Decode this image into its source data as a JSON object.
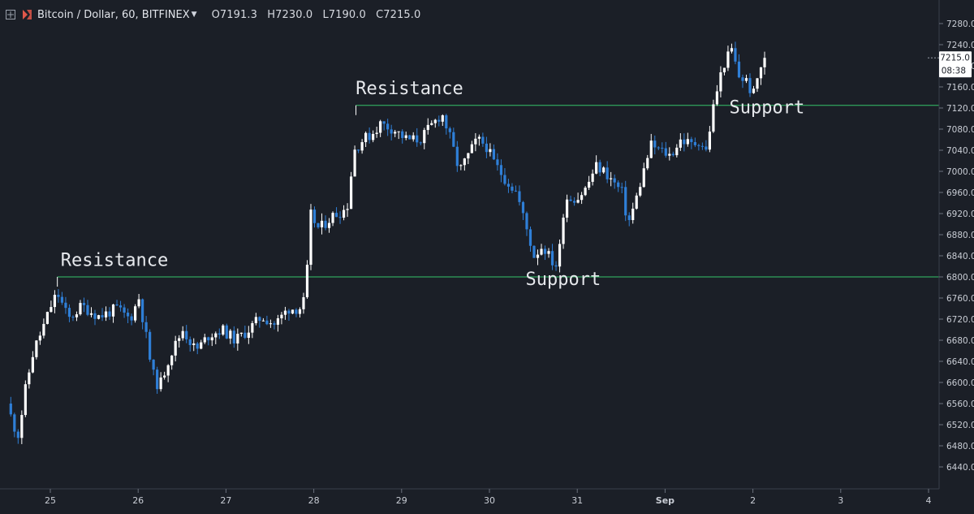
{
  "header": {
    "symbol": "Bitcoin / Dollar, 60, BITFINEX",
    "open": "O7191.3",
    "high": "H7230.0",
    "low": "L7190.0",
    "close": "C7215.0"
  },
  "price_label": {
    "price": "7215.0",
    "countdown": "08:38"
  },
  "colors": {
    "background": "#1b1f27",
    "up": "#ffffff",
    "down": "#2f7fd7",
    "level_line": "#34c46a",
    "axis_text": "#c9cdd5",
    "annotation_text": "#e6e8ec"
  },
  "chart_data": {
    "type": "candlestick",
    "title": "Bitcoin / Dollar, 60, BITFINEX",
    "interval": "60",
    "x_ticks": [
      "25",
      "26",
      "27",
      "28",
      "29",
      "30",
      "31",
      "Sep",
      "2",
      "3",
      "4"
    ],
    "y_ticks": [
      6440.0,
      6480.0,
      6520.0,
      6560.0,
      6600.0,
      6640.0,
      6680.0,
      6720.0,
      6760.0,
      6800.0,
      6840.0,
      6880.0,
      6920.0,
      6960.0,
      7000.0,
      7040.0,
      7080.0,
      7120.0,
      7160.0,
      7200.0,
      7240.0,
      7280.0
    ],
    "y_tick_labels": [
      "6440.0",
      "6480.0",
      "6520.0",
      "6560.0",
      "6600.0",
      "6640.0",
      "6680.0",
      "6720.0",
      "6760.0",
      "6800.0",
      "6840.0",
      "6880.0",
      "6920.0",
      "6960.0",
      "7000.0",
      "7040.0",
      "7080.0",
      "7120.0",
      "7160.0",
      "7200.0",
      "7240.0",
      "7280.0"
    ],
    "ylim": [
      6410,
      7300
    ],
    "xlim": [
      24.55,
      35.2
    ],
    "grid": false,
    "levels": [
      {
        "price": 6800,
        "from": 25.08
      },
      {
        "price": 7125,
        "from": 28.48
      }
    ],
    "annotations": [
      {
        "text": "Resistance",
        "x": 25.73,
        "price": 6821
      },
      {
        "text": "Resistance",
        "x": 29.09,
        "price": 7146
      },
      {
        "text": "Support",
        "x": 30.84,
        "price": 6785
      },
      {
        "text": "Support",
        "x": 33.16,
        "price": 7110
      }
    ],
    "current_price": 7215.0,
    "anchors": [
      [
        24.55,
        6560
      ],
      [
        24.62,
        6520
      ],
      [
        24.68,
        6500
      ],
      [
        24.75,
        6580
      ],
      [
        24.85,
        6660
      ],
      [
        24.95,
        6700
      ],
      [
        25.05,
        6745
      ],
      [
        25.12,
        6770
      ],
      [
        25.25,
        6720
      ],
      [
        25.4,
        6745
      ],
      [
        25.6,
        6725
      ],
      [
        25.8,
        6740
      ],
      [
        25.95,
        6720
      ],
      [
        26.05,
        6760
      ],
      [
        26.12,
        6700
      ],
      [
        26.2,
        6620
      ],
      [
        26.28,
        6590
      ],
      [
        26.4,
        6650
      ],
      [
        26.55,
        6700
      ],
      [
        26.7,
        6660
      ],
      [
        26.85,
        6690
      ],
      [
        27.0,
        6700
      ],
      [
        27.15,
        6680
      ],
      [
        27.3,
        6700
      ],
      [
        27.45,
        6725
      ],
      [
        27.6,
        6710
      ],
      [
        27.75,
        6740
      ],
      [
        27.88,
        6740
      ],
      [
        27.95,
        6760
      ],
      [
        28.0,
        6920
      ],
      [
        28.1,
        6890
      ],
      [
        28.25,
        6915
      ],
      [
        28.42,
        6930
      ],
      [
        28.5,
        7040
      ],
      [
        28.6,
        7060
      ],
      [
        28.7,
        7070
      ],
      [
        28.8,
        7090
      ],
      [
        28.95,
        7080
      ],
      [
        29.1,
        7060
      ],
      [
        29.25,
        7060
      ],
      [
        29.4,
        7090
      ],
      [
        29.5,
        7110
      ],
      [
        29.6,
        7060
      ],
      [
        29.7,
        7000
      ],
      [
        29.8,
        7030
      ],
      [
        29.9,
        7060
      ],
      [
        30.0,
        7050
      ],
      [
        30.08,
        7020
      ],
      [
        30.2,
        6990
      ],
      [
        30.35,
        6960
      ],
      [
        30.45,
        6900
      ],
      [
        30.55,
        6840
      ],
      [
        30.65,
        6860
      ],
      [
        30.75,
        6830
      ],
      [
        30.82,
        6820
      ],
      [
        30.9,
        6950
      ],
      [
        31.05,
        6950
      ],
      [
        31.15,
        6970
      ],
      [
        31.25,
        7010
      ],
      [
        31.35,
        7000
      ],
      [
        31.45,
        6980
      ],
      [
        31.55,
        6960
      ],
      [
        31.62,
        6900
      ],
      [
        31.7,
        6940
      ],
      [
        31.78,
        6990
      ],
      [
        31.88,
        7050
      ],
      [
        31.98,
        7040
      ],
      [
        32.1,
        7030
      ],
      [
        32.22,
        7060
      ],
      [
        32.35,
        7050
      ],
      [
        32.45,
        7060
      ],
      [
        32.5,
        7030
      ],
      [
        32.6,
        7130
      ],
      [
        32.7,
        7200
      ],
      [
        32.8,
        7230
      ],
      [
        32.88,
        7180
      ],
      [
        32.98,
        7170
      ],
      [
        33.04,
        7140
      ],
      [
        33.12,
        7195
      ],
      [
        33.17,
        7215
      ]
    ]
  },
  "axis_labels_x": {
    "t25": "25",
    "t26": "26",
    "t27": "27",
    "t28": "28",
    "t29": "29",
    "t30": "30",
    "t31": "31",
    "tsep": "Sep",
    "t2": "2",
    "t3": "3",
    "t4": "4"
  },
  "annotation_labels": {
    "resistance_1": "Resistance",
    "resistance_2": "Resistance",
    "support_1": "Support",
    "support_2": "Support"
  }
}
